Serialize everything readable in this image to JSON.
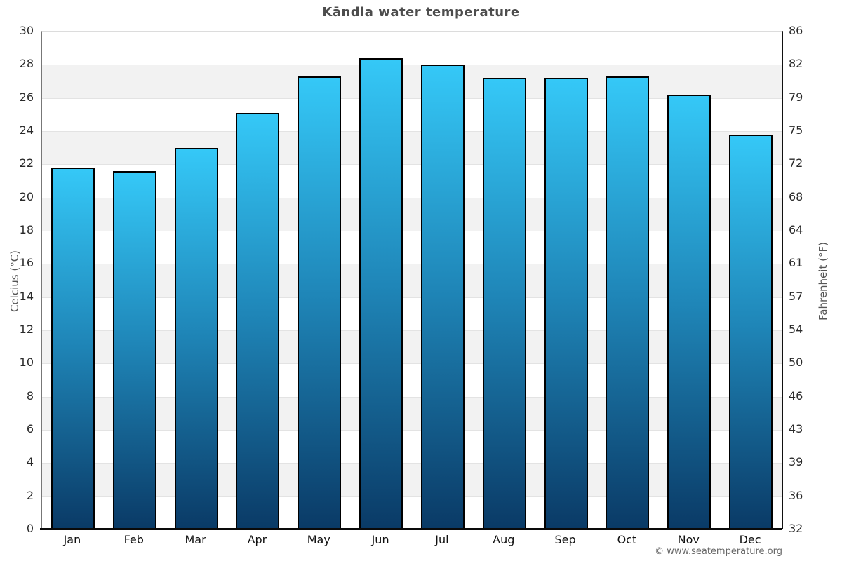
{
  "title": "Kāndla water temperature",
  "watermark": "© www.seatemperature.org",
  "chart_data": {
    "type": "bar",
    "title": "Kāndla water temperature",
    "categories": [
      "Jan",
      "Feb",
      "Mar",
      "Apr",
      "May",
      "Jun",
      "Jul",
      "Aug",
      "Sep",
      "Oct",
      "Nov",
      "Dec"
    ],
    "values": [
      21.8,
      21.6,
      23.0,
      25.1,
      27.3,
      28.4,
      28.0,
      27.2,
      27.2,
      27.3,
      26.2,
      23.8
    ],
    "series_name": "Water temperature (°C)",
    "ylabel_left": "Celcius (°C)",
    "ylabel_right": "Fahrenheit (°F)",
    "xlabel": "",
    "ylim": [
      0,
      30
    ],
    "left_ticks_top_to_bottom": [
      30,
      28,
      26,
      24,
      22,
      20,
      18,
      16,
      14,
      12,
      10,
      8,
      6,
      4,
      2,
      0
    ],
    "right_ticks_top_to_bottom": [
      86,
      82,
      79,
      75,
      72,
      68,
      64,
      61,
      57,
      54,
      50,
      46,
      43,
      39,
      36,
      32
    ],
    "grid": "horizontal-bands",
    "legend": "none",
    "colors": {
      "bar_top": "#35c8f7",
      "bar_mid": "#1f86b8",
      "bar_bottom": "#0a3a66",
      "bar_border": "#000000",
      "band_gray": "#f2f2f2",
      "band_white": "#ffffff",
      "gridline": "#e3e3e3",
      "axis_line": "#0a0a0a",
      "title_text": "#4d4d4d",
      "axis_label_text": "#555555",
      "tick_text": "#2a2a2a"
    }
  }
}
